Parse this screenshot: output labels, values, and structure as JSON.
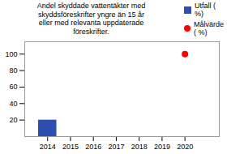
{
  "chart_data": {
    "type": "bar",
    "title": "Andel skyddade vattentäkter med\nskyddsföreskrifter yngre än 15 år\neller med relevanta uppdaterade\nföreskrifter.",
    "x": [
      2014,
      2020
    ],
    "series": [
      {
        "name": "Utfall (\n%)",
        "type": "bar",
        "color": "#2E4FAD",
        "values": [
          20,
          null
        ]
      },
      {
        "name": "Målvärde\n( %)",
        "type": "scatter",
        "color": "#FF0000",
        "values": [
          null,
          100
        ]
      }
    ],
    "xlim": [
      2013.0,
      2021.5
    ],
    "xticks": [
      2014,
      2015,
      2016,
      2017,
      2018,
      2019,
      2020
    ],
    "ylim": [
      0,
      115
    ],
    "yticks": [
      20,
      40,
      60,
      80,
      100
    ],
    "grid": false,
    "legend": "upper right"
  }
}
